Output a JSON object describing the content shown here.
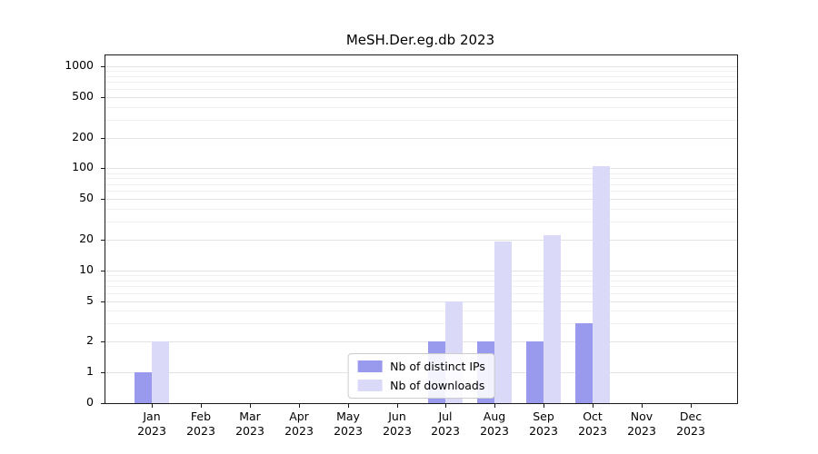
{
  "chart_data": {
    "type": "bar",
    "title": "MeSH.Der.eg.db 2023",
    "xlabel": "",
    "ylabel": "",
    "yscale": "symlog",
    "grid": true,
    "legend_position": "lower center",
    "categories": [
      "Jan",
      "Feb",
      "Mar",
      "Apr",
      "May",
      "Jun",
      "Jul",
      "Aug",
      "Sep",
      "Oct",
      "Nov",
      "Dec"
    ],
    "year": "2023",
    "series": [
      {
        "name": "Nb of distinct IPs",
        "color": "#9999ee",
        "values": [
          1,
          0,
          0,
          0,
          0,
          0,
          2,
          2,
          2,
          3,
          0,
          0
        ]
      },
      {
        "name": "Nb of downloads",
        "color": "#dadaf8",
        "values": [
          2,
          0,
          0,
          0,
          0,
          0,
          5,
          19,
          22,
          105,
          0,
          0
        ]
      }
    ],
    "y_ticks": [
      0,
      1,
      2,
      5,
      10,
      20,
      50,
      100,
      200,
      500,
      1000
    ],
    "ylim": [
      0,
      1300
    ]
  }
}
